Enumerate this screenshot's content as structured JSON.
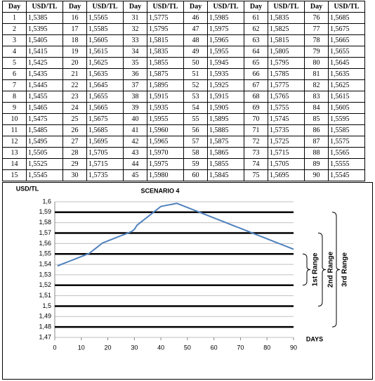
{
  "table": {
    "header": [
      "Day",
      "USD/TL",
      "Day",
      "USD/TL",
      "Day",
      "USD/TL",
      "Day",
      "USD/TL",
      "Day",
      "USD/TL",
      "Day",
      "USD/TL"
    ],
    "rows": [
      [
        1,
        "1,5385",
        16,
        "1,5565",
        31,
        "1,5775",
        46,
        "1,5985",
        61,
        "1,5835",
        76,
        "1,5685"
      ],
      [
        2,
        "1,5395",
        17,
        "1,5585",
        32,
        "1,5795",
        47,
        "1,5975",
        62,
        "1,5825",
        77,
        "1,5675"
      ],
      [
        3,
        "1,5405",
        18,
        "1,5605",
        33,
        "1,5815",
        48,
        "1,5965",
        63,
        "1,5815",
        78,
        "1,5665"
      ],
      [
        4,
        "1,5415",
        19,
        "1,5615",
        34,
        "1,5835",
        49,
        "1,5955",
        64,
        "1,5805",
        79,
        "1,5655"
      ],
      [
        5,
        "1,5425",
        20,
        "1,5625",
        35,
        "1,5855",
        50,
        "1,5945",
        65,
        "1,5795",
        80,
        "1,5645"
      ],
      [
        6,
        "1,5435",
        21,
        "1,5635",
        36,
        "1,5875",
        51,
        "1,5935",
        66,
        "1,5785",
        81,
        "1,5635"
      ],
      [
        7,
        "1,5445",
        22,
        "1,5645",
        37,
        "1,5895",
        52,
        "1,5925",
        67,
        "1,5775",
        82,
        "1,5625"
      ],
      [
        8,
        "1,5455",
        23,
        "1,5655",
        38,
        "1,5915",
        53,
        "1,5915",
        68,
        "1,5765",
        83,
        "1,5615"
      ],
      [
        9,
        "1,5465",
        24,
        "1,5665",
        39,
        "1,5935",
        54,
        "1,5905",
        69,
        "1,5755",
        84,
        "1,5605"
      ],
      [
        10,
        "1,5475",
        25,
        "1,5675",
        40,
        "1,5955",
        55,
        "1,5895",
        70,
        "1,5745",
        85,
        "1,5595"
      ],
      [
        11,
        "1,5485",
        26,
        "1,5685",
        41,
        "1,5960",
        56,
        "1,5885",
        71,
        "1,5735",
        86,
        "1,5585"
      ],
      [
        12,
        "1,5495",
        27,
        "1,5695",
        42,
        "1,5965",
        57,
        "1,5875",
        72,
        "1,5725",
        87,
        "1,5575"
      ],
      [
        13,
        "1,5505",
        28,
        "1,5705",
        43,
        "1,5970",
        58,
        "1,5865",
        73,
        "1,5715",
        88,
        "1,5565"
      ],
      [
        14,
        "1,5525",
        29,
        "1,5715",
        44,
        "1,5975",
        59,
        "1,5855",
        74,
        "1,5705",
        89,
        "1,5555"
      ],
      [
        15,
        "1,5545",
        30,
        "1,5735",
        45,
        "1,5980",
        60,
        "1,5845",
        75,
        "1,5695",
        90,
        "1,5545"
      ]
    ]
  },
  "chart_data": {
    "type": "line",
    "title": "SCENARIO 4",
    "y_label": "USD/TL",
    "x_label": "DAYS",
    "x": [
      1,
      2,
      3,
      4,
      5,
      6,
      7,
      8,
      9,
      10,
      11,
      12,
      13,
      14,
      15,
      16,
      17,
      18,
      19,
      20,
      21,
      22,
      23,
      24,
      25,
      26,
      27,
      28,
      29,
      30,
      31,
      32,
      33,
      34,
      35,
      36,
      37,
      38,
      39,
      40,
      41,
      42,
      43,
      44,
      45,
      46,
      47,
      48,
      49,
      50,
      51,
      52,
      53,
      54,
      55,
      56,
      57,
      58,
      59,
      60,
      61,
      62,
      63,
      64,
      65,
      66,
      67,
      68,
      69,
      70,
      71,
      72,
      73,
      74,
      75,
      76,
      77,
      78,
      79,
      80,
      81,
      82,
      83,
      84,
      85,
      86,
      87,
      88,
      89,
      90
    ],
    "series": [
      {
        "color": "#4f81bd",
        "values": [
          1.5385,
          1.5395,
          1.5405,
          1.5415,
          1.5425,
          1.5435,
          1.5445,
          1.5455,
          1.5465,
          1.5475,
          1.5485,
          1.5495,
          1.5505,
          1.5525,
          1.5545,
          1.5565,
          1.5585,
          1.5605,
          1.5615,
          1.5625,
          1.5635,
          1.5645,
          1.5655,
          1.5665,
          1.5675,
          1.5685,
          1.5695,
          1.5705,
          1.5715,
          1.5735,
          1.5775,
          1.5795,
          1.5815,
          1.5835,
          1.5855,
          1.5875,
          1.5895,
          1.5915,
          1.5935,
          1.5955,
          1.596,
          1.5965,
          1.597,
          1.5975,
          1.598,
          1.5985,
          1.5975,
          1.5965,
          1.5955,
          1.5945,
          1.5935,
          1.5925,
          1.5915,
          1.5905,
          1.5895,
          1.5885,
          1.5875,
          1.5865,
          1.5855,
          1.5845,
          1.5835,
          1.5825,
          1.5815,
          1.5805,
          1.5795,
          1.5785,
          1.5775,
          1.5765,
          1.5755,
          1.5745,
          1.5735,
          1.5725,
          1.5715,
          1.5705,
          1.5695,
          1.5685,
          1.5675,
          1.5665,
          1.5655,
          1.5645,
          1.5635,
          1.5625,
          1.5615,
          1.5605,
          1.5595,
          1.5585,
          1.5575,
          1.5565,
          1.5555,
          1.5545
        ]
      }
    ],
    "xlim": [
      0,
      90
    ],
    "xticks": [
      0,
      10,
      20,
      30,
      40,
      50,
      60,
      70,
      80,
      90
    ],
    "ylim": [
      1.47,
      1.6
    ],
    "yticks": [
      {
        "value": 1.47,
        "label": "1,47"
      },
      {
        "value": 1.48,
        "label": "1,48"
      },
      {
        "value": 1.49,
        "label": "1,49"
      },
      {
        "value": 1.5,
        "label": "1,5"
      },
      {
        "value": 1.51,
        "label": "1,51"
      },
      {
        "value": 1.52,
        "label": "1,52"
      },
      {
        "value": 1.53,
        "label": "1,53"
      },
      {
        "value": 1.54,
        "label": "1,54"
      },
      {
        "value": 1.55,
        "label": "1,55"
      },
      {
        "value": 1.56,
        "label": "1,56"
      },
      {
        "value": 1.57,
        "label": "1,57"
      },
      {
        "value": 1.58,
        "label": "1,58"
      },
      {
        "value": 1.59,
        "label": "1,59"
      },
      {
        "value": 1.6,
        "label": "1,6"
      }
    ],
    "grid": true,
    "ranges": [
      {
        "label": "1st Range",
        "low": 1.52,
        "high": 1.55
      },
      {
        "label": "2nd Range",
        "low": 1.5,
        "high": 1.57
      },
      {
        "label": "3rd Range",
        "low": 1.48,
        "high": 1.59
      }
    ]
  }
}
